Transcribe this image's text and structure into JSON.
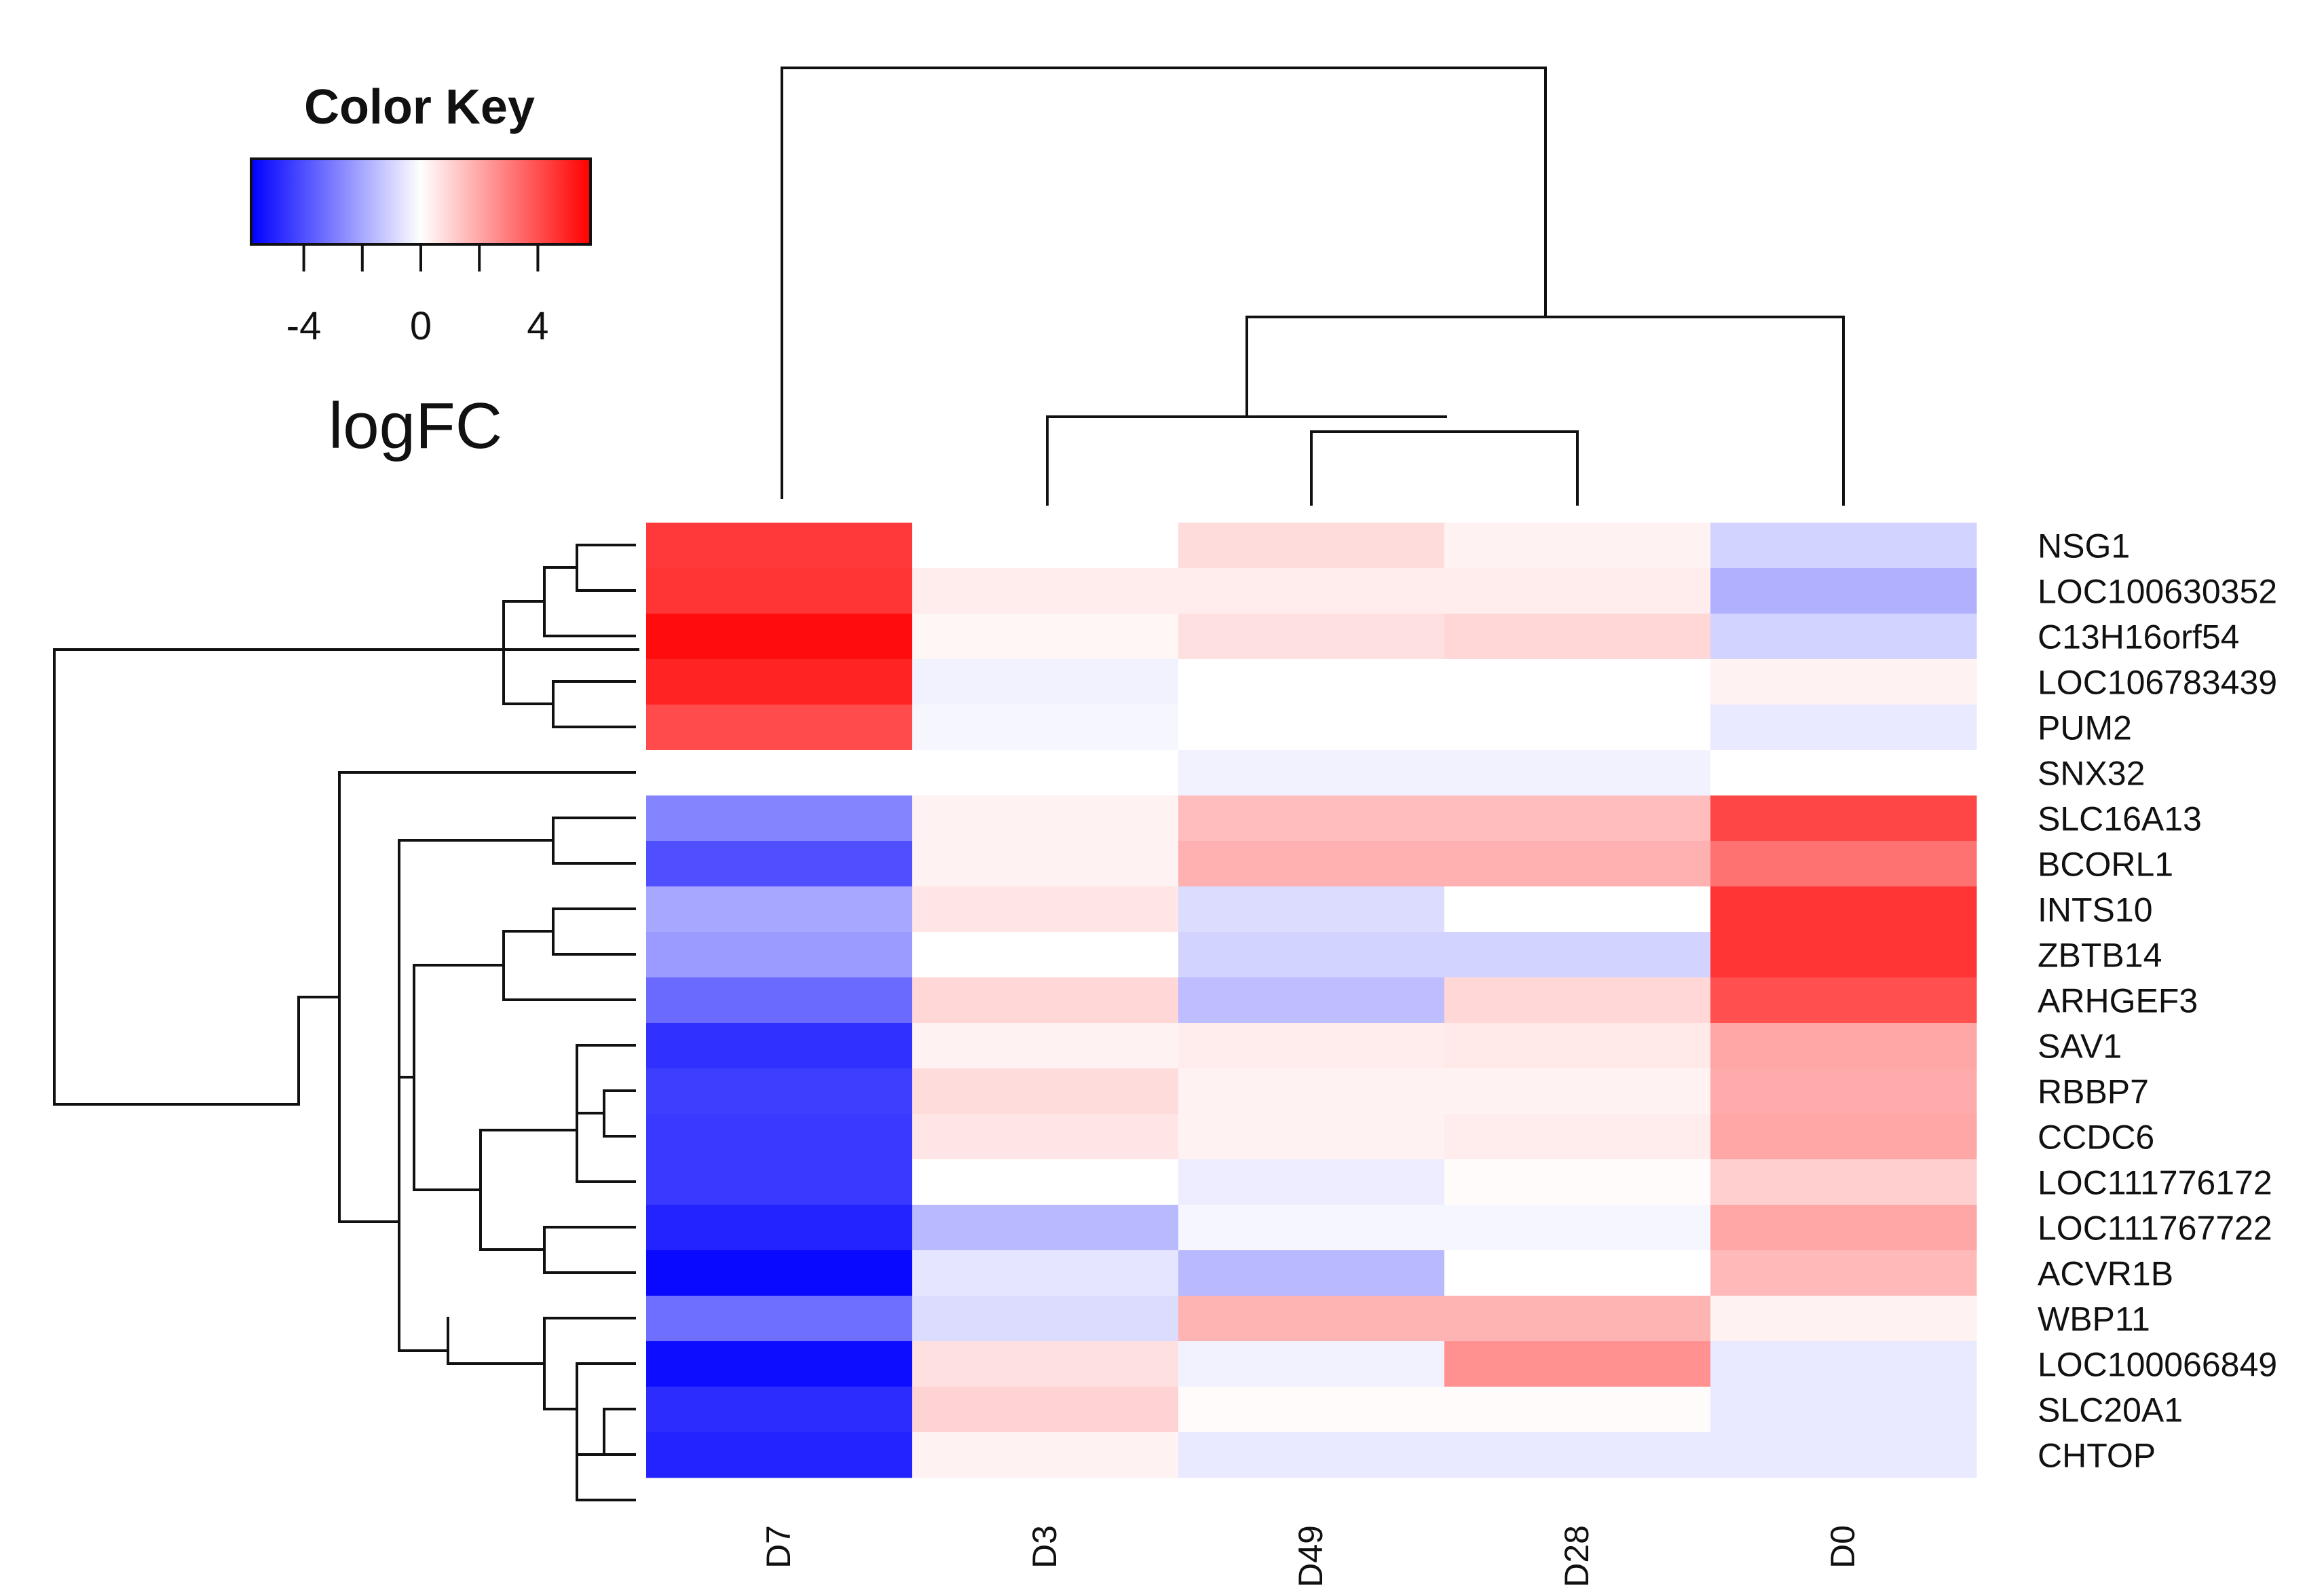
{
  "chart_data": {
    "type": "heatmap",
    "title": "",
    "columns": [
      "D7",
      "D3",
      "D49",
      "D28",
      "D0"
    ],
    "rows": [
      "NSG1",
      "LOC100630352",
      "C13H16orf54",
      "LOC106783439",
      "PUM2",
      "SNX32",
      "SLC16A13",
      "BCORL1",
      "INTS10",
      "ZBTB14",
      "ARHGEF3",
      "SAV1",
      "RBBP7",
      "CCDC6",
      "LOC111776172",
      "LOC111767722",
      "ACVR1B",
      "WBP11",
      "LOC100066849",
      "SLC20A1",
      "CHTOP"
    ],
    "values": [
      [
        4.5,
        0.0,
        0.8,
        0.3,
        -1.0
      ],
      [
        4.6,
        0.4,
        0.4,
        0.4,
        -1.8
      ],
      [
        5.5,
        0.2,
        0.7,
        0.9,
        -1.0
      ],
      [
        5.0,
        -0.3,
        0.0,
        0.0,
        0.3
      ],
      [
        4.1,
        -0.2,
        0.0,
        0.0,
        -0.5
      ],
      [
        0.0,
        0.0,
        -0.3,
        -0.3,
        0.0
      ],
      [
        -2.8,
        0.3,
        1.5,
        1.5,
        4.2
      ],
      [
        -4.0,
        0.3,
        1.8,
        1.8,
        3.2
      ],
      [
        -2.0,
        0.6,
        -0.8,
        0.0,
        4.6
      ],
      [
        -2.3,
        0.0,
        -1.0,
        -1.0,
        4.6
      ],
      [
        -3.4,
        0.9,
        -1.5,
        0.9,
        4.0
      ],
      [
        -4.7,
        0.3,
        0.4,
        0.5,
        2.0
      ],
      [
        -4.4,
        0.8,
        0.3,
        0.3,
        1.9
      ],
      [
        -4.5,
        0.6,
        0.3,
        0.4,
        2.0
      ],
      [
        -4.5,
        0.0,
        -0.4,
        0.1,
        1.1
      ],
      [
        -5.0,
        -1.6,
        -0.2,
        -0.2,
        2.0
      ],
      [
        -5.6,
        -0.6,
        -1.6,
        0.0,
        1.6
      ],
      [
        -3.3,
        -0.8,
        1.7,
        1.7,
        0.3
      ],
      [
        -5.5,
        0.7,
        -0.3,
        2.5,
        -0.5
      ],
      [
        -4.8,
        1.0,
        0.1,
        0.1,
        -0.5
      ],
      [
        -5.0,
        0.3,
        -0.5,
        -0.5,
        -0.5
      ]
    ],
    "color_scale": {
      "low": "#0000ff",
      "mid": "#ffffff",
      "high": "#ff0000",
      "min": -5.8,
      "max": 5.8
    },
    "color_key": {
      "title": "Color Key",
      "ticks": [
        -4,
        0,
        4
      ],
      "tick_labels": [
        "-4",
        "0",
        "4"
      ],
      "minor_ticks": [
        -4,
        -2,
        0,
        2,
        4
      ],
      "label": "logFC"
    }
  }
}
